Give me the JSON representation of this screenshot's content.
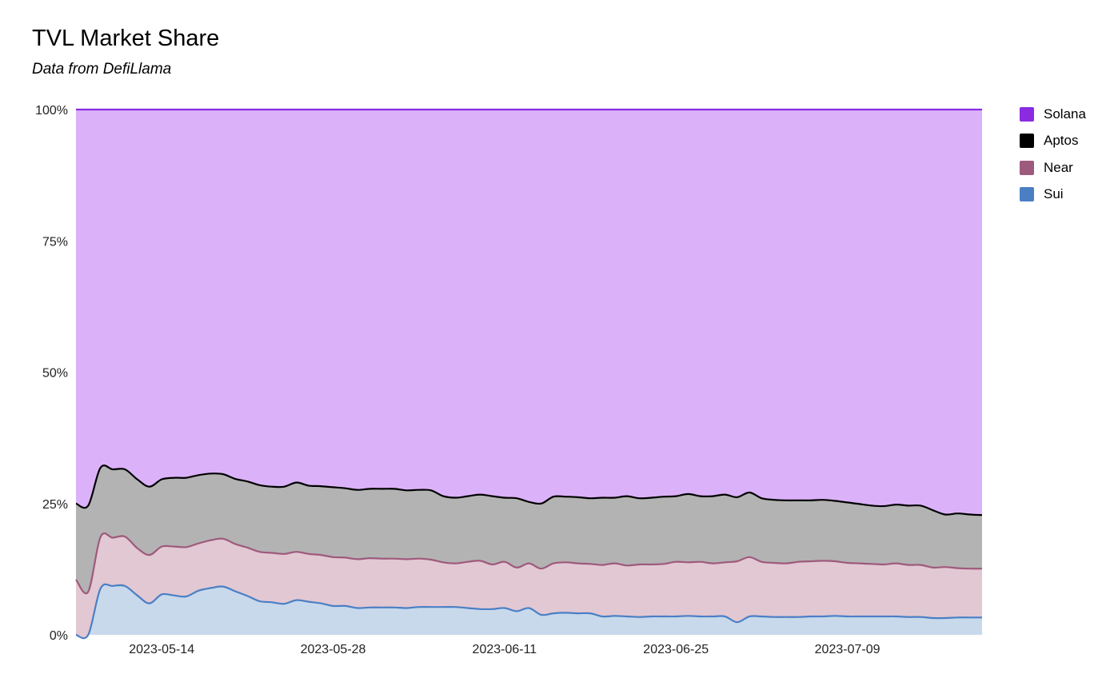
{
  "chart_data": {
    "type": "area",
    "stacked": true,
    "normalized": true,
    "title": "TVL Market Share",
    "subtitle": "Data from DefiLlama",
    "y_ticks": [
      "0%",
      "25%",
      "50%",
      "75%",
      "100%"
    ],
    "ylim": [
      0,
      100
    ],
    "x_ticks": [
      "2023-05-14",
      "2023-05-28",
      "2023-06-11",
      "2023-06-25",
      "2023-07-09"
    ],
    "x_tick_dates": [
      "2023-05-14",
      "2023-05-28",
      "2023-06-11",
      "2023-06-25",
      "2023-07-09"
    ],
    "legend_position": "right",
    "x": [
      "2023-05-07",
      "2023-05-08",
      "2023-05-09",
      "2023-05-10",
      "2023-05-11",
      "2023-05-12",
      "2023-05-13",
      "2023-05-14",
      "2023-05-15",
      "2023-05-16",
      "2023-05-17",
      "2023-05-18",
      "2023-05-19",
      "2023-05-20",
      "2023-05-21",
      "2023-05-22",
      "2023-05-23",
      "2023-05-24",
      "2023-05-25",
      "2023-05-26",
      "2023-05-27",
      "2023-05-28",
      "2023-05-29",
      "2023-05-30",
      "2023-05-31",
      "2023-06-01",
      "2023-06-02",
      "2023-06-03",
      "2023-06-04",
      "2023-06-05",
      "2023-06-06",
      "2023-06-07",
      "2023-06-08",
      "2023-06-09",
      "2023-06-10",
      "2023-06-11",
      "2023-06-12",
      "2023-06-13",
      "2023-06-14",
      "2023-06-15",
      "2023-06-16",
      "2023-06-17",
      "2023-06-18",
      "2023-06-19",
      "2023-06-20",
      "2023-06-21",
      "2023-06-22",
      "2023-06-23",
      "2023-06-24",
      "2023-06-25",
      "2023-06-26",
      "2023-06-27",
      "2023-06-28",
      "2023-06-29",
      "2023-06-30",
      "2023-07-01",
      "2023-07-02",
      "2023-07-03",
      "2023-07-04",
      "2023-07-05",
      "2023-07-06",
      "2023-07-07",
      "2023-07-08",
      "2023-07-09",
      "2023-07-10",
      "2023-07-11",
      "2023-07-12",
      "2023-07-13",
      "2023-07-14",
      "2023-07-15",
      "2023-07-16",
      "2023-07-17",
      "2023-07-18",
      "2023-07-19",
      "2023-07-20"
    ],
    "series": [
      {
        "name": "Sui",
        "color": "#4a7fc4",
        "fill": "#c8d9ec",
        "values": [
          0.0,
          0.0,
          8.8,
          9.3,
          9.3,
          7.5,
          6.0,
          7.7,
          7.5,
          7.3,
          8.4,
          8.9,
          9.2,
          8.3,
          7.4,
          6.4,
          6.2,
          5.9,
          6.6,
          6.3,
          6.0,
          5.5,
          5.5,
          5.1,
          5.2,
          5.2,
          5.2,
          5.1,
          5.3,
          5.3,
          5.3,
          5.3,
          5.1,
          4.9,
          4.9,
          5.1,
          4.5,
          5.1,
          3.8,
          4.1,
          4.2,
          4.1,
          4.1,
          3.5,
          3.6,
          3.5,
          3.4,
          3.5,
          3.5,
          3.5,
          3.6,
          3.5,
          3.5,
          3.5,
          2.4,
          3.5,
          3.5,
          3.4,
          3.4,
          3.4,
          3.5,
          3.5,
          3.6,
          3.5,
          3.5,
          3.5,
          3.5,
          3.5,
          3.4,
          3.4,
          3.2,
          3.2,
          3.3,
          3.3,
          3.3
        ]
      },
      {
        "name": "Near",
        "color": "#9e5a7c",
        "fill": "#e2c8d3",
        "values": [
          10.5,
          8.2,
          9.8,
          9.2,
          9.4,
          9.0,
          9.2,
          9.1,
          9.3,
          9.4,
          9.0,
          9.1,
          9.1,
          9.0,
          9.2,
          9.4,
          9.4,
          9.5,
          9.2,
          9.1,
          9.2,
          9.3,
          9.2,
          9.3,
          9.4,
          9.3,
          9.3,
          9.3,
          9.2,
          9.0,
          8.5,
          8.3,
          8.8,
          9.2,
          8.5,
          8.8,
          8.3,
          8.5,
          8.8,
          9.5,
          9.6,
          9.5,
          9.4,
          9.8,
          10.0,
          9.7,
          10.0,
          9.9,
          10.0,
          10.4,
          10.2,
          10.4,
          10.1,
          10.3,
          11.6,
          11.3,
          10.4,
          10.3,
          10.2,
          10.5,
          10.5,
          10.6,
          10.4,
          10.2,
          10.1,
          10.0,
          9.9,
          10.1,
          9.9,
          9.9,
          9.6,
          9.7,
          9.4,
          9.3,
          9.3
        ]
      },
      {
        "name": "Aptos",
        "color": "#000000",
        "fill": "#b3b3b3",
        "values": [
          14.5,
          16.4,
          13.2,
          13.0,
          12.8,
          13.1,
          13.0,
          12.8,
          13.1,
          13.2,
          13.0,
          12.7,
          12.3,
          12.4,
          12.6,
          12.7,
          12.6,
          12.8,
          13.2,
          13.0,
          13.1,
          13.3,
          13.2,
          13.2,
          13.2,
          13.3,
          13.3,
          13.1,
          13.1,
          13.2,
          12.6,
          12.5,
          12.5,
          12.6,
          13.0,
          12.2,
          13.2,
          11.7,
          12.4,
          12.7,
          12.5,
          12.6,
          12.5,
          12.8,
          12.5,
          13.2,
          12.6,
          12.7,
          12.8,
          12.5,
          13.0,
          12.5,
          12.8,
          12.9,
          12.2,
          12.3,
          12.1,
          12.0,
          12.0,
          11.7,
          11.6,
          11.6,
          11.5,
          11.5,
          11.3,
          11.1,
          11.1,
          11.2,
          11.3,
          11.3,
          10.9,
          10.0,
          10.4,
          10.3,
          10.2
        ]
      },
      {
        "name": "Solana",
        "color": "#8a2be2",
        "fill": "#dbb2f9",
        "values": [
          75.0,
          75.4,
          68.2,
          68.5,
          68.5,
          70.4,
          71.8,
          70.4,
          70.1,
          70.1,
          69.6,
          69.3,
          69.4,
          70.3,
          70.8,
          71.5,
          71.8,
          71.8,
          71.0,
          71.6,
          71.7,
          71.9,
          72.1,
          72.4,
          72.2,
          72.2,
          72.2,
          72.5,
          72.4,
          72.5,
          73.6,
          73.9,
          73.6,
          73.3,
          73.6,
          73.9,
          74.0,
          74.7,
          75.0,
          73.7,
          73.7,
          73.8,
          74.0,
          73.9,
          73.9,
          73.6,
          74.0,
          73.9,
          73.7,
          73.6,
          73.2,
          73.6,
          73.6,
          73.3,
          73.8,
          72.9,
          74.0,
          74.3,
          74.4,
          74.4,
          74.4,
          74.3,
          74.5,
          74.8,
          75.1,
          75.4,
          75.5,
          75.2,
          75.4,
          75.4,
          76.3,
          77.1,
          76.9,
          77.1,
          77.2
        ]
      }
    ]
  }
}
